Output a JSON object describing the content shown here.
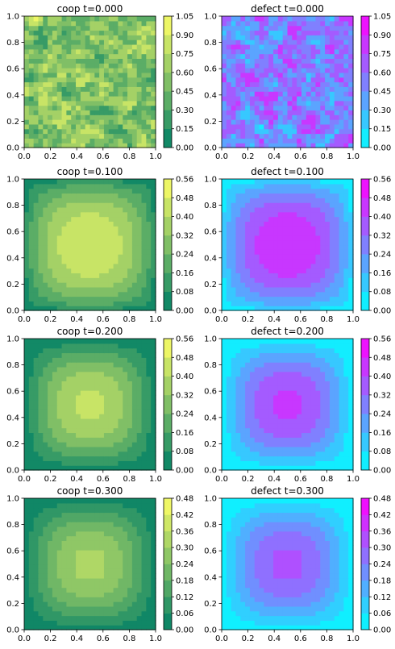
{
  "chart_data": [
    {
      "type": "heatmap",
      "variable": "coop",
      "title": "coop   t=0.000",
      "cmap": "summer",
      "levels": [
        "0.00",
        "0.15",
        "0.30",
        "0.45",
        "0.60",
        "0.75",
        "0.90",
        "1.05"
      ],
      "vmax": 1.05,
      "pattern": "noise",
      "peak": 1.0,
      "xlim": [
        0,
        1
      ],
      "ylim": [
        0,
        1
      ],
      "xticks": [
        "0.0",
        "0.2",
        "0.4",
        "0.6",
        "0.8",
        "1.0"
      ],
      "yticks": [
        "0.0",
        "0.2",
        "0.4",
        "0.6",
        "0.8",
        "1.0"
      ]
    },
    {
      "type": "heatmap",
      "variable": "defect",
      "title": "defect   t=0.000",
      "cmap": "cool",
      "levels": [
        "0.00",
        "0.15",
        "0.30",
        "0.45",
        "0.60",
        "0.75",
        "0.90",
        "1.05"
      ],
      "vmax": 1.05,
      "pattern": "noise",
      "peak": 1.0,
      "xlim": [
        0,
        1
      ],
      "ylim": [
        0,
        1
      ],
      "xticks": [
        "0.0",
        "0.2",
        "0.4",
        "0.6",
        "0.8",
        "1.0"
      ],
      "yticks": [
        "0.0",
        "0.2",
        "0.4",
        "0.6",
        "0.8",
        "1.0"
      ]
    },
    {
      "type": "heatmap",
      "variable": "coop",
      "title": "coop   t=0.100",
      "cmap": "summer",
      "levels": [
        "0.00",
        "0.08",
        "0.16",
        "0.24",
        "0.32",
        "0.40",
        "0.48",
        "0.56"
      ],
      "vmax": 0.56,
      "pattern": "plateau",
      "peak": 0.44,
      "xlim": [
        0,
        1
      ],
      "ylim": [
        0,
        1
      ],
      "xticks": [
        "0.0",
        "0.2",
        "0.4",
        "0.6",
        "0.8",
        "1.0"
      ],
      "yticks": [
        "0.0",
        "0.2",
        "0.4",
        "0.6",
        "0.8",
        "1.0"
      ]
    },
    {
      "type": "heatmap",
      "variable": "defect",
      "title": "defect   t=0.100",
      "cmap": "cool",
      "levels": [
        "0.00",
        "0.08",
        "0.16",
        "0.24",
        "0.32",
        "0.40",
        "0.48",
        "0.56"
      ],
      "vmax": 0.56,
      "pattern": "plateau",
      "peak": 0.44,
      "xlim": [
        0,
        1
      ],
      "ylim": [
        0,
        1
      ],
      "xticks": [
        "0.0",
        "0.2",
        "0.4",
        "0.6",
        "0.8",
        "1.0"
      ],
      "yticks": [
        "0.0",
        "0.2",
        "0.4",
        "0.6",
        "0.8",
        "1.0"
      ]
    },
    {
      "type": "heatmap",
      "variable": "coop",
      "title": "coop   t=0.200",
      "cmap": "summer",
      "levels": [
        "0.00",
        "0.08",
        "0.16",
        "0.24",
        "0.32",
        "0.40",
        "0.48",
        "0.56"
      ],
      "vmax": 0.56,
      "pattern": "dome",
      "peak": 0.42,
      "xlim": [
        0,
        1
      ],
      "ylim": [
        0,
        1
      ],
      "xticks": [
        "0.0",
        "0.2",
        "0.4",
        "0.6",
        "0.8",
        "1.0"
      ],
      "yticks": [
        "0.0",
        "0.2",
        "0.4",
        "0.6",
        "0.8",
        "1.0"
      ]
    },
    {
      "type": "heatmap",
      "variable": "defect",
      "title": "defect   t=0.200",
      "cmap": "cool",
      "levels": [
        "0.00",
        "0.08",
        "0.16",
        "0.24",
        "0.32",
        "0.40",
        "0.48",
        "0.56"
      ],
      "vmax": 0.56,
      "pattern": "dome",
      "peak": 0.42,
      "xlim": [
        0,
        1
      ],
      "ylim": [
        0,
        1
      ],
      "xticks": [
        "0.0",
        "0.2",
        "0.4",
        "0.6",
        "0.8",
        "1.0"
      ],
      "yticks": [
        "0.0",
        "0.2",
        "0.4",
        "0.6",
        "0.8",
        "1.0"
      ]
    },
    {
      "type": "heatmap",
      "variable": "coop",
      "title": "coop   t=0.300",
      "cmap": "summer",
      "levels": [
        "0.00",
        "0.06",
        "0.12",
        "0.18",
        "0.24",
        "0.30",
        "0.36",
        "0.42",
        "0.48"
      ],
      "vmax": 0.48,
      "pattern": "dome",
      "peak": 0.32,
      "xlim": [
        0,
        1
      ],
      "ylim": [
        0,
        1
      ],
      "xticks": [
        "0.0",
        "0.2",
        "0.4",
        "0.6",
        "0.8",
        "1.0"
      ],
      "yticks": [
        "0.0",
        "0.2",
        "0.4",
        "0.6",
        "0.8",
        "1.0"
      ]
    },
    {
      "type": "heatmap",
      "variable": "defect",
      "title": "defect   t=0.300",
      "cmap": "cool",
      "levels": [
        "0.00",
        "0.06",
        "0.12",
        "0.18",
        "0.24",
        "0.30",
        "0.36",
        "0.42",
        "0.48"
      ],
      "vmax": 0.48,
      "pattern": "dome",
      "peak": 0.32,
      "xlim": [
        0,
        1
      ],
      "ylim": [
        0,
        1
      ],
      "xticks": [
        "0.0",
        "0.2",
        "0.4",
        "0.6",
        "0.8",
        "1.0"
      ],
      "yticks": [
        "0.0",
        "0.2",
        "0.4",
        "0.6",
        "0.8",
        "1.0"
      ]
    }
  ]
}
